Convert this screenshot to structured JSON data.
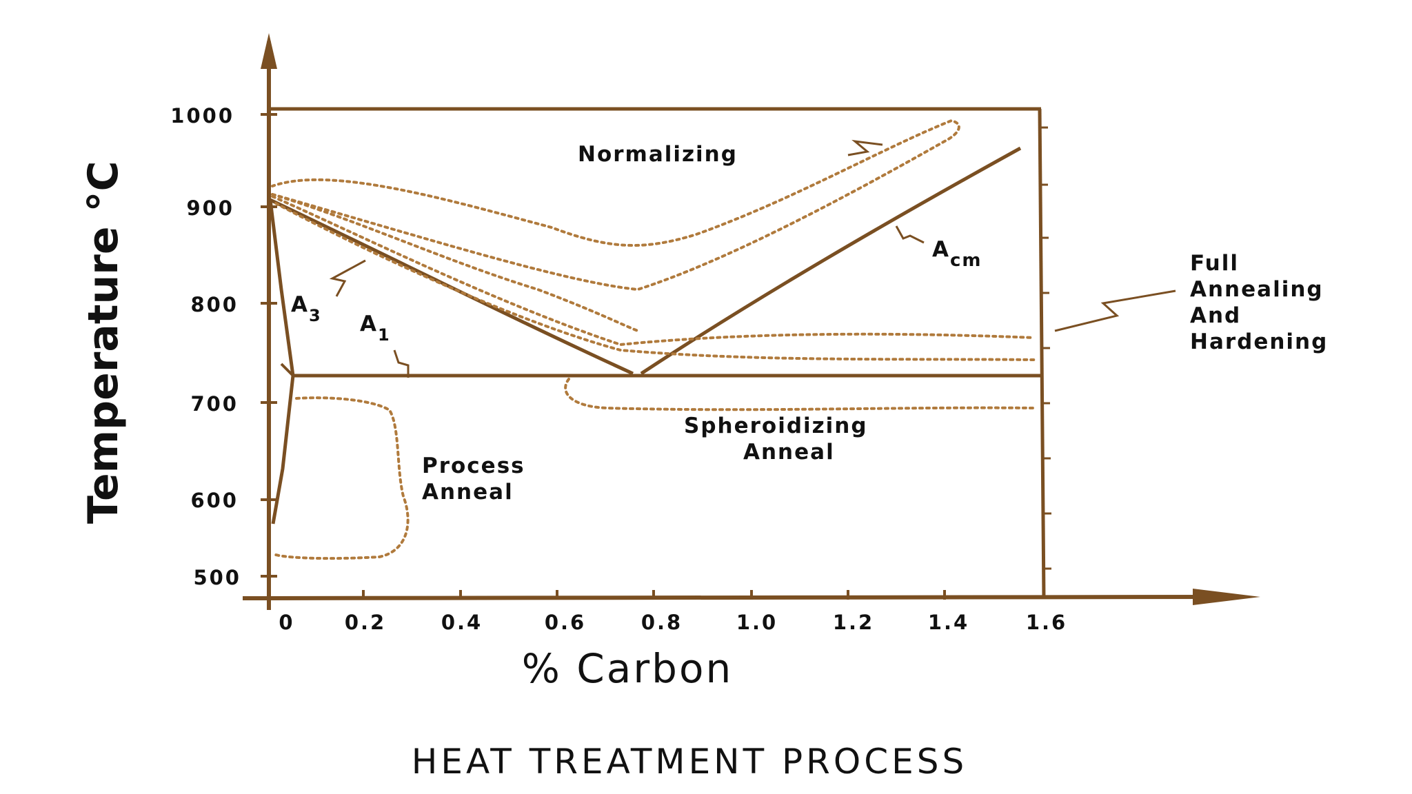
{
  "title": "HEAT TREATMENT PROCESS",
  "x_axis": {
    "label": "% Carbon",
    "ticks": [
      "0",
      "0.2",
      "0.4",
      "0.6",
      "0.8",
      "1.0",
      "1.2",
      "1.4",
      "1.6"
    ]
  },
  "y_axis": {
    "label": "Temperature °C",
    "ticks": [
      "1000",
      "900",
      "800",
      "700",
      "600",
      "500"
    ]
  },
  "regions": {
    "normalizing": "Normalizing",
    "full_annealing": [
      "Full",
      "Annealing",
      "And",
      "Hardening"
    ],
    "spheroidizing": [
      "Spheroidizing",
      "Anneal"
    ],
    "process_anneal": [
      "Process",
      "Anneal"
    ]
  },
  "lines": {
    "a3": {
      "letter": "A",
      "sub": "3"
    },
    "a1": {
      "letter": "A",
      "sub": "1"
    },
    "acm": {
      "letter": "A",
      "sub": "cm"
    }
  },
  "colors": {
    "line": "#7a4f22",
    "dotted": "#b07a3c",
    "text": "#111111"
  }
}
